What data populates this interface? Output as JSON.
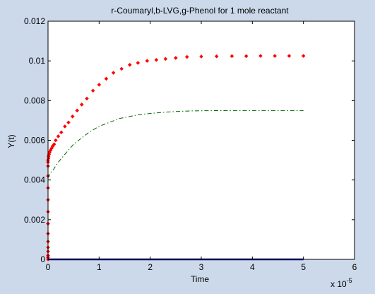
{
  "chart_data": {
    "type": "line",
    "title": "r-Coumaryl,b-LVG,g-Phenol for 1 mole reactant",
    "xlabel": "Time",
    "ylabel": "Y(t)",
    "x_multiplier_label": "x 10",
    "x_multiplier_exponent": "-5",
    "xlim": [
      0,
      6
    ],
    "ylim": [
      0,
      0.012
    ],
    "xticks": [
      0,
      1,
      2,
      3,
      4,
      5,
      6
    ],
    "xtick_labels": [
      "0",
      "1",
      "2",
      "3",
      "4",
      "5",
      "6"
    ],
    "yticks": [
      0,
      0.002,
      0.004,
      0.006,
      0.008,
      0.01,
      0.012
    ],
    "ytick_labels": [
      "0",
      "0.002",
      "0.004",
      "0.006",
      "0.008",
      "0.01",
      "0.012"
    ],
    "grid": false,
    "colors": {
      "figure_background": "#ccd9ea",
      "axes_background": "#ffffff",
      "series_red": "#ff0000",
      "series_green": "#006400",
      "series_blue": "#00008b"
    },
    "series": [
      {
        "style": "red-dots",
        "x": [
          0,
          0,
          0,
          0,
          0,
          0,
          0,
          0,
          0,
          0,
          0,
          0,
          0,
          0,
          0,
          0.01,
          0.01,
          0.02,
          0.03,
          0.05,
          0.07,
          0.09,
          0.12,
          0.15,
          0.2,
          0.26,
          0.33,
          0.4,
          0.48,
          0.57,
          0.66,
          0.76,
          0.88,
          1.0,
          1.14,
          1.28,
          1.44,
          1.6,
          1.76,
          1.94,
          2.12,
          2.3,
          2.5,
          2.72,
          3.0,
          3.3,
          3.6,
          3.88,
          4.16,
          4.44,
          4.72,
          5.0
        ],
        "y": [
          0,
          0.0001,
          0.0002,
          0.0004,
          0.0006,
          0.0009,
          0.0013,
          0.0018,
          0.0024,
          0.003,
          0.0036,
          0.0042,
          0.0047,
          0.0049,
          0.005,
          0.0051,
          0.0052,
          0.0053,
          0.0054,
          0.0055,
          0.0056,
          0.0057,
          0.0058,
          0.006,
          0.0062,
          0.0064,
          0.0067,
          0.0069,
          0.0072,
          0.0075,
          0.0078,
          0.0081,
          0.0085,
          0.0088,
          0.0091,
          0.0094,
          0.0096,
          0.0098,
          0.0099,
          0.01,
          0.01005,
          0.0101,
          0.01015,
          0.0102,
          0.01022,
          0.01023,
          0.01024,
          0.01024,
          0.01025,
          0.01025,
          0.01025,
          0.01025
        ]
      },
      {
        "style": "green-dashdot",
        "x": [
          0,
          0.01,
          0.03,
          0.06,
          0.1,
          0.15,
          0.2,
          0.3,
          0.4,
          0.5,
          0.6,
          0.8,
          1.0,
          1.2,
          1.4,
          1.6,
          1.8,
          2.0,
          2.2,
          2.5,
          2.8,
          3.0,
          3.5,
          4.0,
          4.5,
          5.0
        ],
        "y": [
          0.0041,
          0.0042,
          0.0043,
          0.0044,
          0.0045,
          0.0047,
          0.0049,
          0.0052,
          0.0055,
          0.0058,
          0.006,
          0.0064,
          0.0067,
          0.0069,
          0.0071,
          0.0072,
          0.0073,
          0.00735,
          0.0074,
          0.00745,
          0.00748,
          0.00749,
          0.0075,
          0.0075,
          0.0075,
          0.0075
        ]
      },
      {
        "style": "blue-solid",
        "x": [
          0,
          5
        ],
        "y": [
          0,
          0
        ]
      }
    ]
  }
}
